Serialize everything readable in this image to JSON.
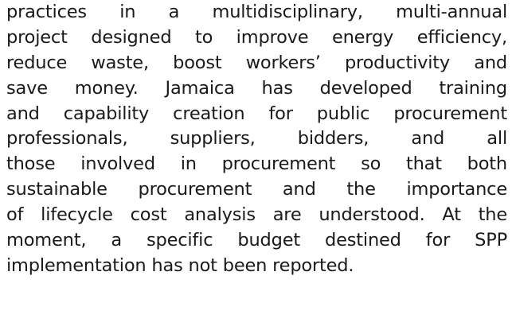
{
  "paragraph": {
    "lines": [
      "practices in a multidisciplinary, multi-annual",
      "project designed to improve energy efficiency,",
      "reduce waste, boost workers’ productivity and",
      "save money. Jamaica has developed training",
      "and capability creation for public procurement",
      "professionals, suppliers, bidders, and all",
      "those involved in procurement so that both",
      "sustainable procurement and the importance",
      "of lifecycle cost analysis are understood. At the",
      "moment, a specific budget destined for SPP",
      "implementation has not been reported."
    ]
  }
}
